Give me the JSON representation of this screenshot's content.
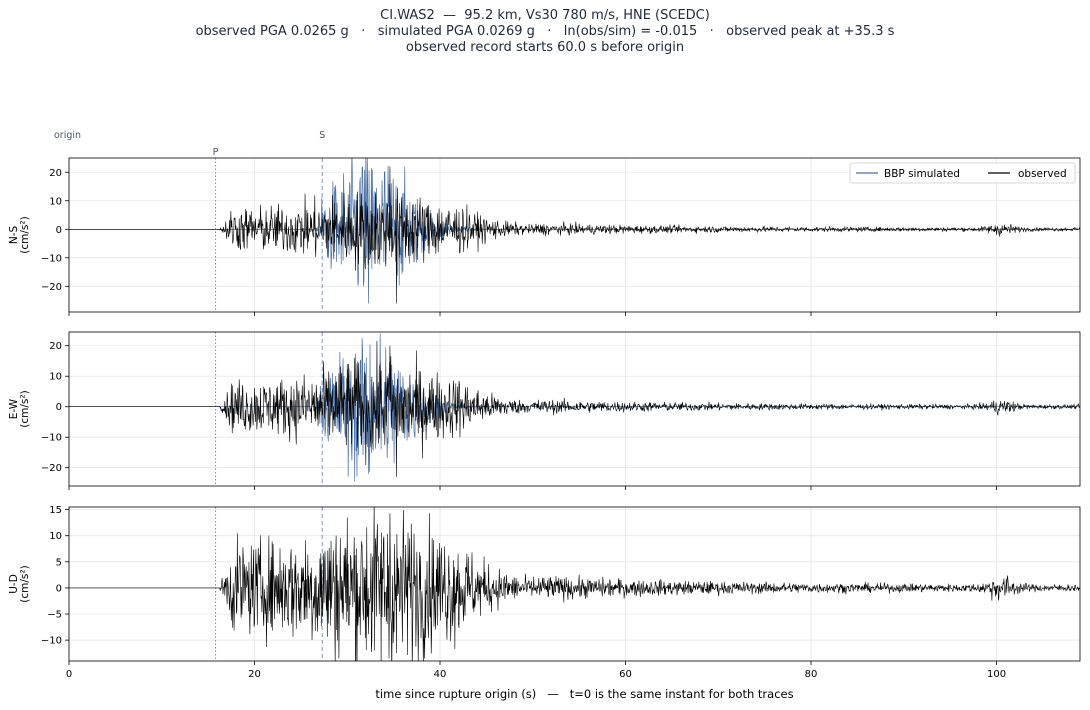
{
  "title": {
    "line1": "CI.WAS2  —  95.2 km, Vs30 780 m/s, HNE (SCEDC)",
    "line2": "observed PGA 0.0265 g   ·   simulated PGA 0.0269 g   ·   ln(obs/sim) = -0.015   ·   observed peak at +35.3 s",
    "line3": "observed record starts 60.0 s before origin"
  },
  "chart_data": {
    "type": "line",
    "xlabel": "time since rupture origin (s)   —   t=0 is the same instant for both traces",
    "xlim": [
      0,
      109
    ],
    "xticks": [
      0,
      20,
      40,
      60,
      80,
      100
    ],
    "grid": true,
    "legend": {
      "position": "top-right",
      "entries": [
        "BBP simulated",
        "observed"
      ]
    },
    "markers": [
      {
        "label": "origin",
        "t": 0
      },
      {
        "label": "P",
        "t": 15.8,
        "style": "dotted"
      },
      {
        "label": "S",
        "t": 27.3,
        "style": "dashed"
      }
    ],
    "colors": {
      "simulated": "#4a6fa5",
      "observed": "#000000",
      "s_line": "#7d95c2",
      "p_line": "#888888"
    },
    "panels": [
      {
        "component": "N-S",
        "ylabel": "N-S\n(cm/s²)",
        "ylim": [
          -29,
          25
        ],
        "yticks": [
          -20,
          -10,
          0,
          10,
          20
        ],
        "series": [
          {
            "name": "BBP simulated",
            "peak_pos": 22,
            "peak_neg": -26,
            "envelope_amp": 9,
            "start": 26.5
          },
          {
            "name": "observed",
            "peak_pos": 22,
            "peak_neg": -26,
            "envelope_amp": 4.5,
            "start": 16.2
          }
        ]
      },
      {
        "component": "E-W",
        "ylabel": "E-W\n(cm/s²)",
        "ylim": [
          -26,
          24.5
        ],
        "yticks": [
          -20,
          -10,
          0,
          10,
          20
        ],
        "series": [
          {
            "name": "BBP simulated",
            "peak_pos": 22.5,
            "peak_neg": -22,
            "envelope_amp": 8,
            "start": 26.5
          },
          {
            "name": "observed",
            "peak_pos": 20,
            "peak_neg": -23,
            "envelope_amp": 5,
            "start": 16.2
          }
        ]
      },
      {
        "component": "U-D",
        "ylabel": "U-D\n(cm/s²)",
        "ylim": [
          -14,
          15.5
        ],
        "yticks": [
          -10,
          -5,
          0,
          5,
          10,
          15
        ],
        "series": [
          {
            "name": "observed",
            "peak_pos": 14.3,
            "peak_neg": -12.5,
            "envelope_amp": 5,
            "start": 16.2
          }
        ]
      }
    ]
  }
}
